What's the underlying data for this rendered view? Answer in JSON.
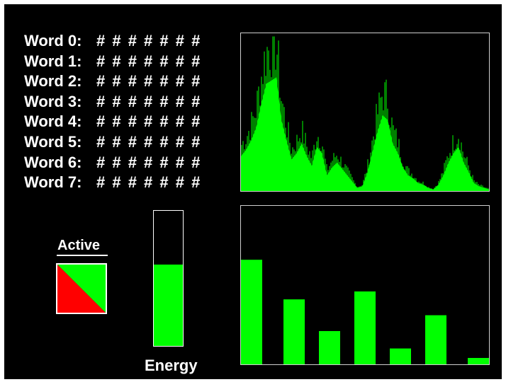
{
  "words": [
    {
      "label": "Word 0:",
      "value": "# # # # # # #"
    },
    {
      "label": "Word 1:",
      "value": "# # # # # # #"
    },
    {
      "label": "Word 2:",
      "value": "# # # # # # #"
    },
    {
      "label": "Word 3:",
      "value": "# # # # # # #"
    },
    {
      "label": "Word 4:",
      "value": "# # # # # # #"
    },
    {
      "label": "Word 5:",
      "value": "# # # # # # #"
    },
    {
      "label": "Word 6:",
      "value": "# # # # # # #"
    },
    {
      "label": "Word 7:",
      "value": "# # # # # # #"
    }
  ],
  "active": {
    "label": "Active",
    "colors": [
      "#ff0000",
      "#00ff00"
    ]
  },
  "energy": {
    "label": "Energy",
    "level": 0.6,
    "color": "#00ff00"
  },
  "colors": {
    "signal": "#00ff00",
    "frame": "#cfcfcf",
    "background": "#000000",
    "text": "#ffffff"
  },
  "waveform": {
    "envelope": [
      0.22,
      0.26,
      0.32,
      0.4,
      0.55,
      0.68,
      0.7,
      0.72,
      0.45,
      0.32,
      0.2,
      0.24,
      0.3,
      0.22,
      0.16,
      0.28,
      0.24,
      0.1,
      0.15,
      0.18,
      0.14,
      0.1,
      0.06,
      0.02,
      0.03,
      0.12,
      0.25,
      0.38,
      0.48,
      0.45,
      0.3,
      0.24,
      0.15,
      0.1,
      0.08,
      0.05,
      0.04,
      0.02,
      0.01,
      0.04,
      0.1,
      0.18,
      0.24,
      0.28,
      0.18,
      0.12,
      0.05,
      0.03,
      0.02,
      0.01
    ],
    "spikes": [
      0.38,
      0.55,
      0.72,
      0.6,
      0.66,
      0.48,
      0.32,
      0.3,
      0.55,
      0.5
    ]
  },
  "bars": [
    0.66,
    0.41,
    0.21,
    0.46,
    0.1,
    0.31,
    0.04
  ]
}
